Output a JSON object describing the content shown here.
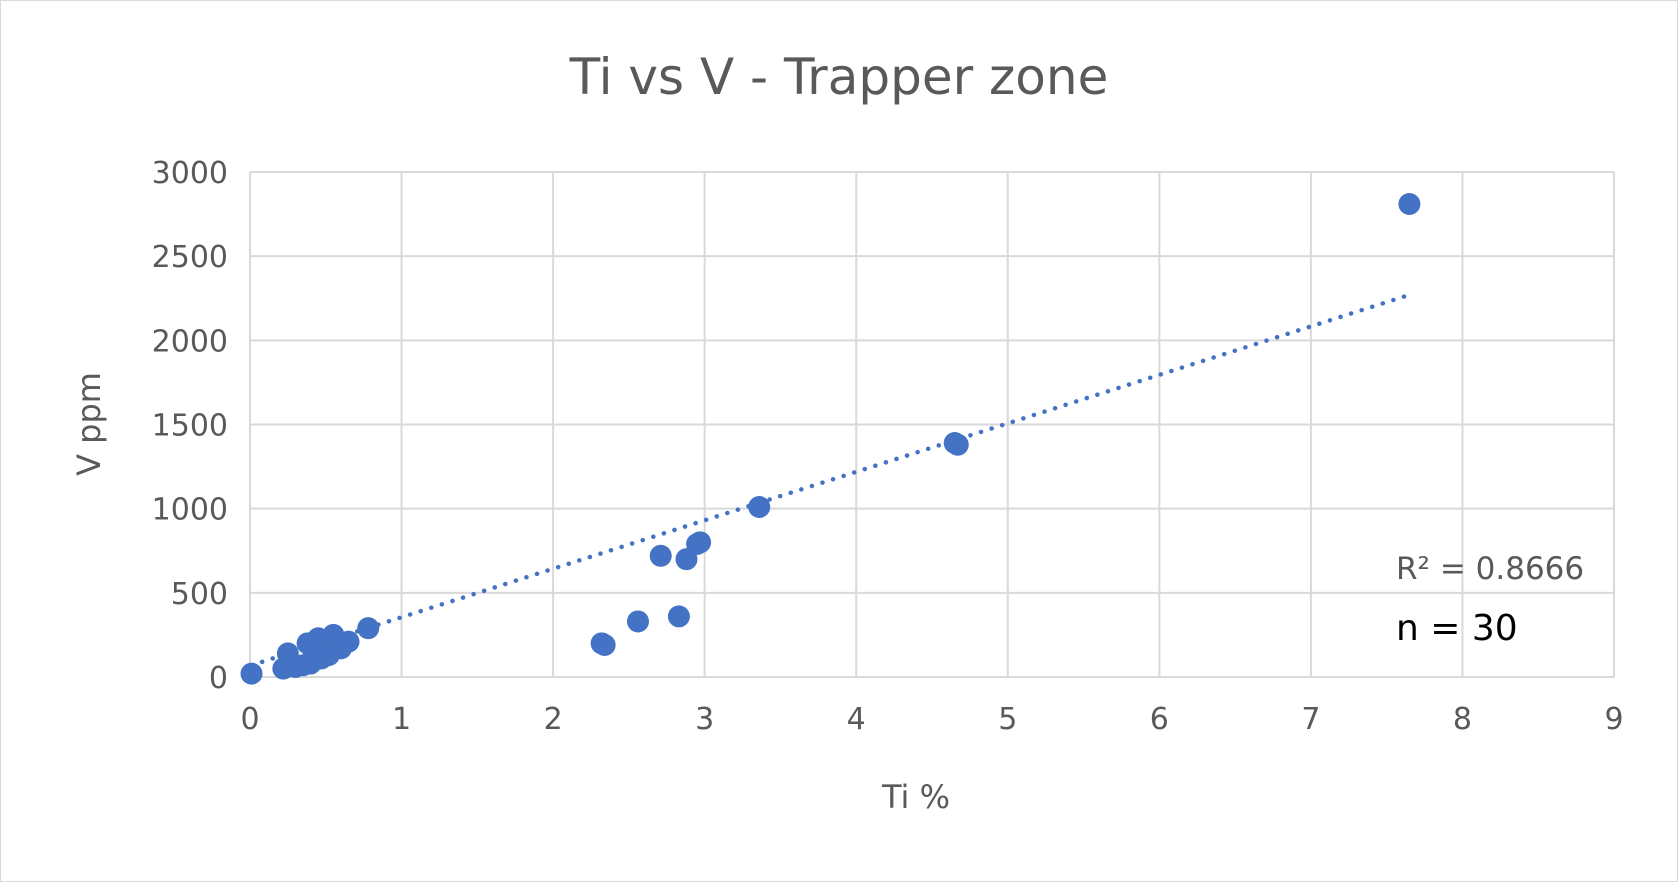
{
  "chart_data": {
    "type": "scatter",
    "title": "Ti vs V - Trapper zone",
    "xlabel": "Ti %",
    "ylabel": "V ppm",
    "xlim": [
      0,
      9
    ],
    "ylim": [
      0,
      3000
    ],
    "x_ticks": [
      "0",
      "1",
      "2",
      "3",
      "4",
      "5",
      "6",
      "7",
      "8",
      "9"
    ],
    "y_ticks": [
      "0",
      "500",
      "1000",
      "1500",
      "2000",
      "2500",
      "3000"
    ],
    "grid": true,
    "marker_color": "#4472c4",
    "series": [
      {
        "points": [
          [
            0.01,
            20
          ],
          [
            0.22,
            50
          ],
          [
            0.25,
            140
          ],
          [
            0.3,
            60
          ],
          [
            0.35,
            70
          ],
          [
            0.38,
            200
          ],
          [
            0.4,
            80
          ],
          [
            0.42,
            150
          ],
          [
            0.45,
            230
          ],
          [
            0.47,
            110
          ],
          [
            0.5,
            180
          ],
          [
            0.52,
            130
          ],
          [
            0.55,
            250
          ],
          [
            0.58,
            190
          ],
          [
            0.6,
            170
          ],
          [
            0.65,
            210
          ],
          [
            0.78,
            290
          ],
          [
            2.32,
            200
          ],
          [
            2.34,
            190
          ],
          [
            2.56,
            330
          ],
          [
            2.71,
            720
          ],
          [
            2.83,
            360
          ],
          [
            2.88,
            700
          ],
          [
            2.95,
            790
          ],
          [
            2.97,
            800
          ],
          [
            3.36,
            1010
          ],
          [
            4.65,
            1390
          ],
          [
            4.67,
            1380
          ],
          [
            7.65,
            2810
          ],
          [
            0.48,
            160
          ]
        ]
      }
    ],
    "trendline": {
      "type": "linear",
      "style": "dotted",
      "color": "#4472c4",
      "x_range": [
        0.01,
        7.65
      ],
      "y_range": [
        70,
        2270
      ]
    },
    "annotations": {
      "r_squared": "R² = 0.8666",
      "n": "n = 30"
    }
  }
}
